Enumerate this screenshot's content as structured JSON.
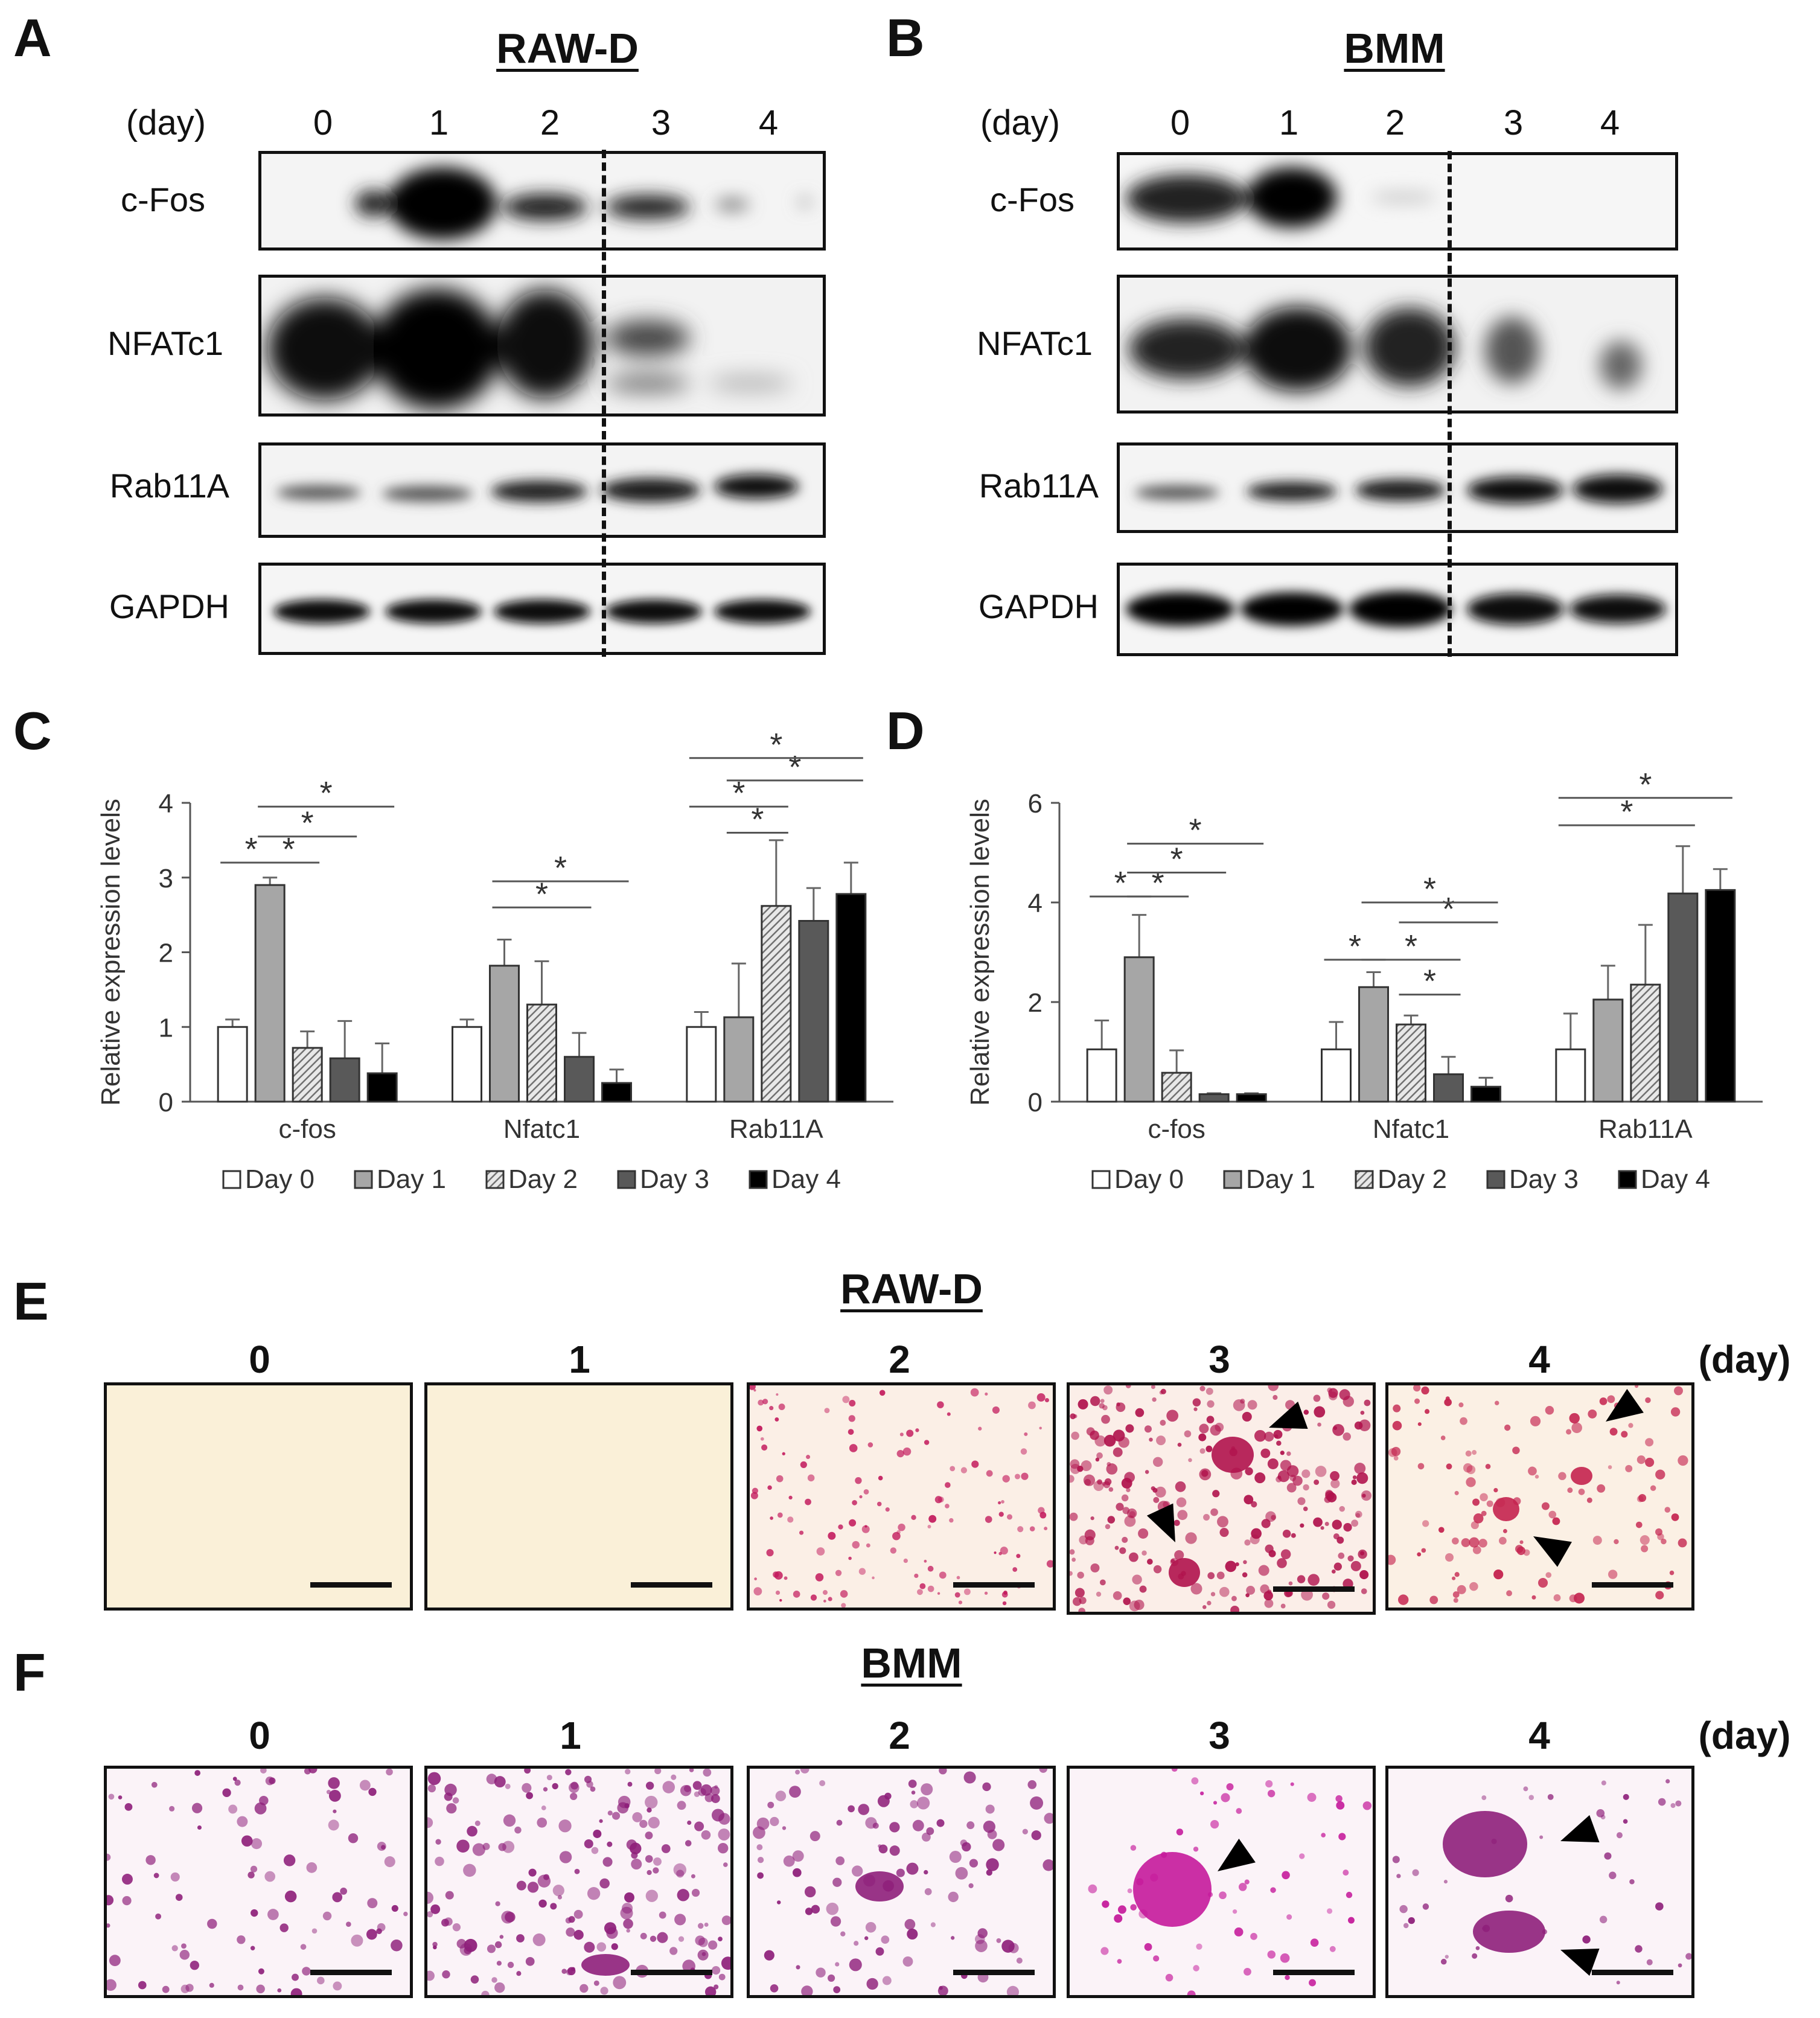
{
  "panels": {
    "A": {
      "letter": "A",
      "title": "RAW-D",
      "day_unit": "(day)",
      "days": [
        "0",
        "1",
        "2",
        "3",
        "4"
      ],
      "rows": [
        "c-Fos",
        "NFATc1",
        "Rab11A",
        "GAPDH"
      ]
    },
    "B": {
      "letter": "B",
      "title": "BMM",
      "day_unit": "(day)",
      "days": [
        "0",
        "1",
        "2",
        "3",
        "4"
      ],
      "rows": [
        "c-Fos",
        "NFATc1",
        "Rab11A",
        "GAPDH"
      ]
    },
    "C": {
      "letter": "C"
    },
    "D": {
      "letter": "D"
    },
    "E": {
      "letter": "E",
      "title": "RAW-D",
      "day_unit": "(day)",
      "days": [
        "0",
        "1",
        "2",
        "3",
        "4"
      ]
    },
    "F": {
      "letter": "F",
      "title": "BMM",
      "day_unit": "(day)",
      "days": [
        "0",
        "1",
        "2",
        "3",
        "4"
      ]
    }
  },
  "chart_data": [
    {
      "panel": "C",
      "type": "bar",
      "ylabel": "Relative expression levels",
      "ylim": [
        0,
        4
      ],
      "yticks": [
        "0",
        "1",
        "2",
        "3",
        "4"
      ],
      "categories": [
        "c-fos",
        "Nfatc1",
        "Rab11A"
      ],
      "series": [
        {
          "name": "Day 0",
          "values": [
            1.0,
            1.0,
            1.0
          ],
          "errors": [
            0.1,
            0.1,
            0.2
          ]
        },
        {
          "name": "Day 1",
          "values": [
            2.9,
            1.82,
            1.13
          ],
          "errors": [
            0.1,
            0.35,
            0.72
          ]
        },
        {
          "name": "Day 2",
          "values": [
            0.72,
            1.3,
            2.62
          ],
          "errors": [
            0.22,
            0.58,
            0.88
          ]
        },
        {
          "name": "Day 3",
          "values": [
            0.58,
            0.6,
            2.42
          ],
          "errors": [
            0.5,
            0.32,
            0.44
          ]
        },
        {
          "name": "Day 4",
          "values": [
            0.38,
            0.25,
            2.78
          ],
          "errors": [
            0.4,
            0.18,
            0.42
          ]
        }
      ],
      "significance": [
        {
          "group": 0,
          "from": 0,
          "to": 1,
          "level": 3.2,
          "mark": "*"
        },
        {
          "group": 0,
          "from": 1,
          "to": 2,
          "level": 3.2,
          "mark": "*"
        },
        {
          "group": 0,
          "from": 1,
          "to": 3,
          "level": 3.55,
          "mark": "*"
        },
        {
          "group": 0,
          "from": 1,
          "to": 4,
          "level": 3.95,
          "mark": "*"
        },
        {
          "group": 1,
          "from": 1,
          "to": 3,
          "level": 2.6,
          "mark": "*"
        },
        {
          "group": 1,
          "from": 1,
          "to": 4,
          "level": 2.95,
          "mark": "*"
        },
        {
          "group": 2,
          "from": 0,
          "to": 2,
          "level": 3.95,
          "mark": "*"
        },
        {
          "group": 2,
          "from": 1,
          "to": 2,
          "level": 3.6,
          "mark": "*"
        },
        {
          "group": 2,
          "from": 1,
          "to": 4,
          "level": 4.3,
          "mark": "*"
        },
        {
          "group": 2,
          "from": 0,
          "to": 4,
          "level": 4.6,
          "mark": "*"
        }
      ],
      "legend": [
        "Day 0",
        "Day 1",
        "Day 2",
        "Day 3",
        "Day 4"
      ]
    },
    {
      "panel": "D",
      "type": "bar",
      "ylabel": "Relative expression levels",
      "ylim": [
        0,
        6
      ],
      "yticks": [
        "0",
        "2",
        "4",
        "6"
      ],
      "categories": [
        "c-fos",
        "Nfatc1",
        "Rab11A"
      ],
      "series": [
        {
          "name": "Day 0",
          "values": [
            1.05,
            1.05,
            1.05
          ],
          "errors": [
            0.58,
            0.55,
            0.72
          ]
        },
        {
          "name": "Day 1",
          "values": [
            2.9,
            2.3,
            2.05
          ],
          "errors": [
            0.85,
            0.3,
            0.68
          ]
        },
        {
          "name": "Day 2",
          "values": [
            0.58,
            1.55,
            2.35
          ],
          "errors": [
            0.45,
            0.18,
            1.2
          ]
        },
        {
          "name": "Day 3",
          "values": [
            0.15,
            0.55,
            4.18
          ],
          "errors": [
            0.02,
            0.35,
            0.95
          ]
        },
        {
          "name": "Day 4",
          "values": [
            0.15,
            0.3,
            4.25
          ],
          "errors": [
            0.02,
            0.18,
            0.42
          ]
        }
      ],
      "significance": [
        {
          "group": 0,
          "from": 0,
          "to": 1,
          "level": 4.12,
          "mark": "*"
        },
        {
          "group": 0,
          "from": 1,
          "to": 2,
          "level": 4.12,
          "mark": "*"
        },
        {
          "group": 0,
          "from": 1,
          "to": 3,
          "level": 4.6,
          "mark": "*"
        },
        {
          "group": 0,
          "from": 1,
          "to": 4,
          "level": 5.18,
          "mark": "*"
        },
        {
          "group": 1,
          "from": 0,
          "to": 1,
          "level": 2.85,
          "mark": "*"
        },
        {
          "group": 1,
          "from": 1,
          "to": 3,
          "level": 2.85,
          "mark": "*"
        },
        {
          "group": 1,
          "from": 2,
          "to": 3,
          "level": 2.15,
          "mark": "*"
        },
        {
          "group": 1,
          "from": 2,
          "to": 4,
          "level": 3.6,
          "mark": "*"
        },
        {
          "group": 1,
          "from": 1,
          "to": 4,
          "level": 4.0,
          "mark": "*"
        },
        {
          "group": 2,
          "from": 0,
          "to": 3,
          "level": 5.55,
          "mark": "*"
        },
        {
          "group": 2,
          "from": 0,
          "to": 4,
          "level": 6.1,
          "mark": "*"
        }
      ],
      "legend": [
        "Day 0",
        "Day 1",
        "Day 2",
        "Day 3",
        "Day 4"
      ]
    }
  ],
  "colors": {
    "day0": "#ffffff",
    "day1": "#a6a6a6",
    "day2_hatch": "#707070",
    "day3": "#595959",
    "day4": "#000000",
    "trap_raw": "#c2185b",
    "trap_bmm": "#8e1f7a",
    "bg_raw": "#faf0d8",
    "bg_bmm": "#fbf3f8"
  }
}
